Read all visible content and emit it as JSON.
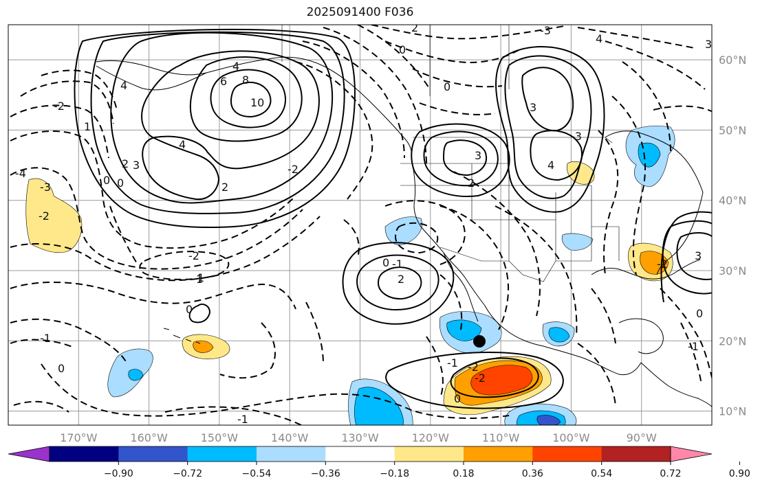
{
  "title": "2025091400 F036",
  "map": {
    "projection": "PlateCarree",
    "lon_range": [
      -180,
      -80
    ],
    "lat_range": [
      8,
      65
    ],
    "lon_ticks": [
      "170°W",
      "160°W",
      "150°W",
      "140°W",
      "130°W",
      "120°W",
      "110°W",
      "100°W",
      "90°W"
    ],
    "lat_ticks": [
      "60°N",
      "50°N",
      "40°N",
      "30°N",
      "20°N",
      "10°N"
    ],
    "grid": true,
    "marker": {
      "label": "location marker",
      "lon": -113,
      "lat": 20
    }
  },
  "contours": {
    "positive_style": "solid",
    "negative_style": "dashed",
    "labels": [
      "10",
      "8",
      "6",
      "4",
      "4",
      "4",
      "3",
      "2",
      "2",
      "1",
      "1",
      "0",
      "0",
      "0",
      "0",
      "-1",
      "-1",
      "-2",
      "-2",
      "-2",
      "-3",
      "-3",
      "-4",
      "-1",
      "-2",
      "2",
      "3",
      "2",
      "0",
      "-1",
      "0",
      "4",
      "3",
      "-3",
      "2",
      "-2",
      "0",
      "1",
      "0",
      "3",
      "-1",
      "0",
      "-2",
      "3",
      "4",
      "-2"
    ]
  },
  "colorbar": {
    "extend": "both",
    "colors": [
      "#9933cc",
      "#000080",
      "#3355cc",
      "#00bbff",
      "#aaddff",
      "#ffffff",
      "#ffe88a",
      "#ffa000",
      "#ff4400",
      "#b22222",
      "#ff88aa"
    ],
    "ticks": [
      "−0.90",
      "−0.72",
      "−0.54",
      "−0.36",
      "−0.18",
      "0.18",
      "0.36",
      "0.54",
      "0.72",
      "0.90"
    ]
  }
}
